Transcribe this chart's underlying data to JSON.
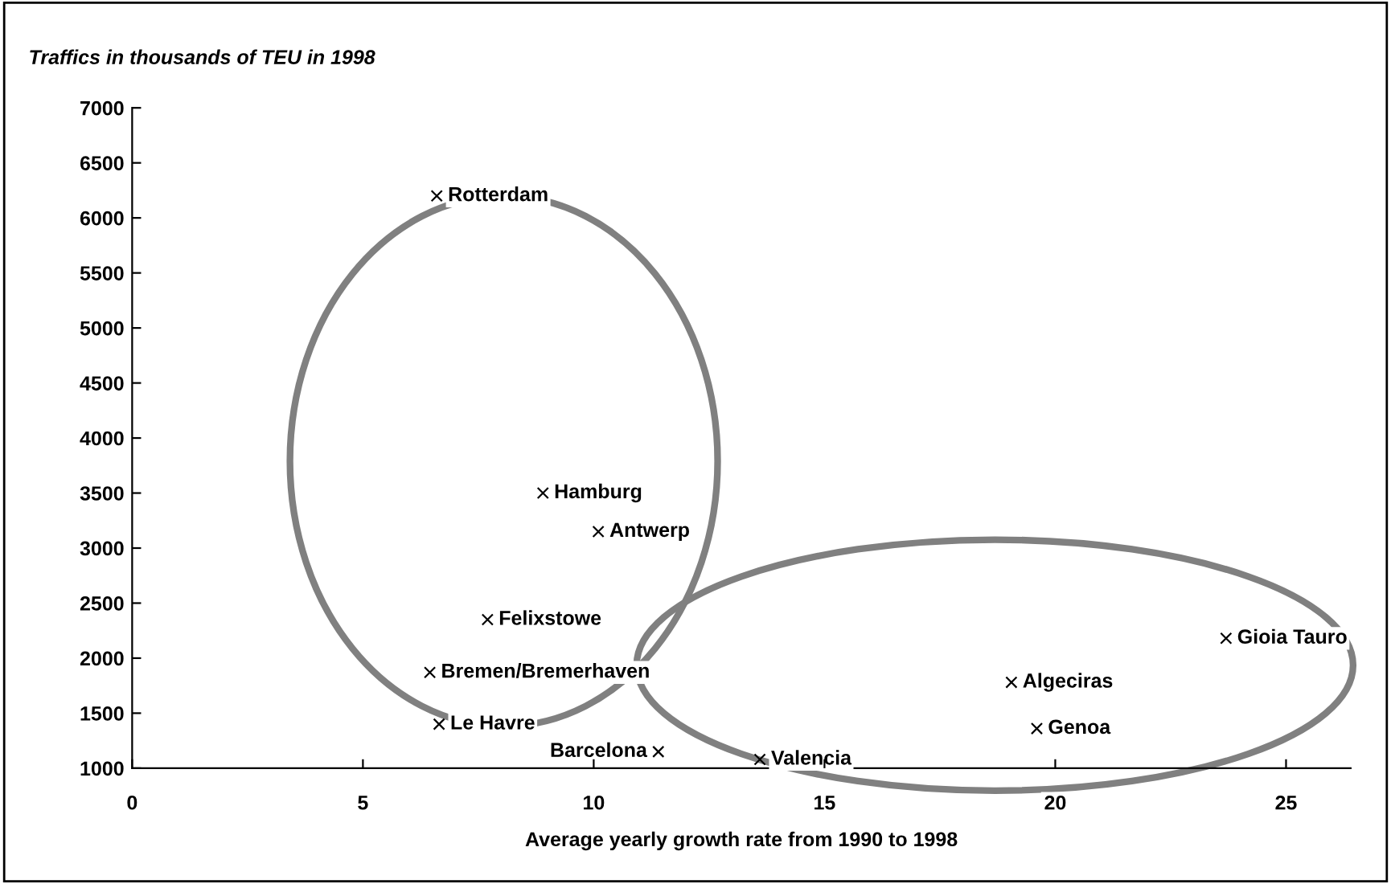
{
  "chart_data": {
    "type": "scatter",
    "ylabel": "Traffics in thousands of TEU in 1998",
    "xlabel": "Average yearly growth rate from 1990 to 1998",
    "series": [
      {
        "color": "#000000",
        "x": [
          6.6,
          8.9,
          10.1,
          7.7,
          6.45,
          6.65,
          11.4,
          13.6,
          19.05,
          19.6,
          23.7
        ],
        "values": [
          6200,
          3500,
          3150,
          2350,
          1870,
          1400,
          1150,
          1080,
          1780,
          1360,
          2180
        ]
      }
    ],
    "annotations": [
      {
        "text": "Rotterdam",
        "x": 6.6,
        "y": 6200
      },
      {
        "text": "Hamburg",
        "x": 8.9,
        "y": 3500
      },
      {
        "text": "Antwerp",
        "x": 10.1,
        "y": 3150
      },
      {
        "text": "Felixstowe",
        "x": 7.7,
        "y": 2350
      },
      {
        "text": "Bremen/Bremerhaven",
        "x": 6.45,
        "y": 1870
      },
      {
        "text": "Le Havre",
        "x": 6.65,
        "y": 1400
      },
      {
        "text": "Barcelona",
        "x": 11.4,
        "y": 1150
      },
      {
        "text": "Valencia",
        "x": 13.6,
        "y": 1080
      },
      {
        "text": "Algeciras",
        "x": 19.05,
        "y": 1780
      },
      {
        "text": "Genoa",
        "x": 19.6,
        "y": 1360
      },
      {
        "text": "Gioia Tauro",
        "x": 23.7,
        "y": 2180
      }
    ],
    "xlim": [
      0,
      26.4
    ],
    "xticks": [
      0,
      5,
      10,
      15,
      20,
      25
    ],
    "ylim": [
      1000,
      7000
    ],
    "yticks": [
      1000,
      1500,
      2000,
      2500,
      3000,
      3500,
      4000,
      4500,
      5000,
      5500,
      6000,
      6500,
      7000
    ],
    "marker": "cross",
    "grid": false,
    "legend": false
  }
}
